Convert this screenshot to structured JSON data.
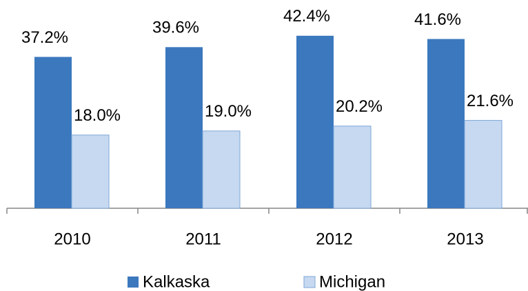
{
  "chart_data": {
    "type": "bar",
    "categories": [
      "2010",
      "2011",
      "2012",
      "2013"
    ],
    "series": [
      {
        "name": "Kalkaska",
        "color": "#3b78be",
        "values": [
          37.2,
          39.6,
          42.4,
          41.6
        ],
        "value_labels": [
          "37.2%",
          "39.6%",
          "42.4%",
          "41.6%"
        ]
      },
      {
        "name": "Michigan",
        "color": "#c6d9f1",
        "values": [
          18.0,
          19.0,
          20.2,
          21.6
        ],
        "value_labels": [
          "18.0%",
          "19.0%",
          "20.2%",
          "21.6%"
        ]
      }
    ],
    "ylim": [
      0,
      50
    ],
    "legend": "bottom"
  }
}
